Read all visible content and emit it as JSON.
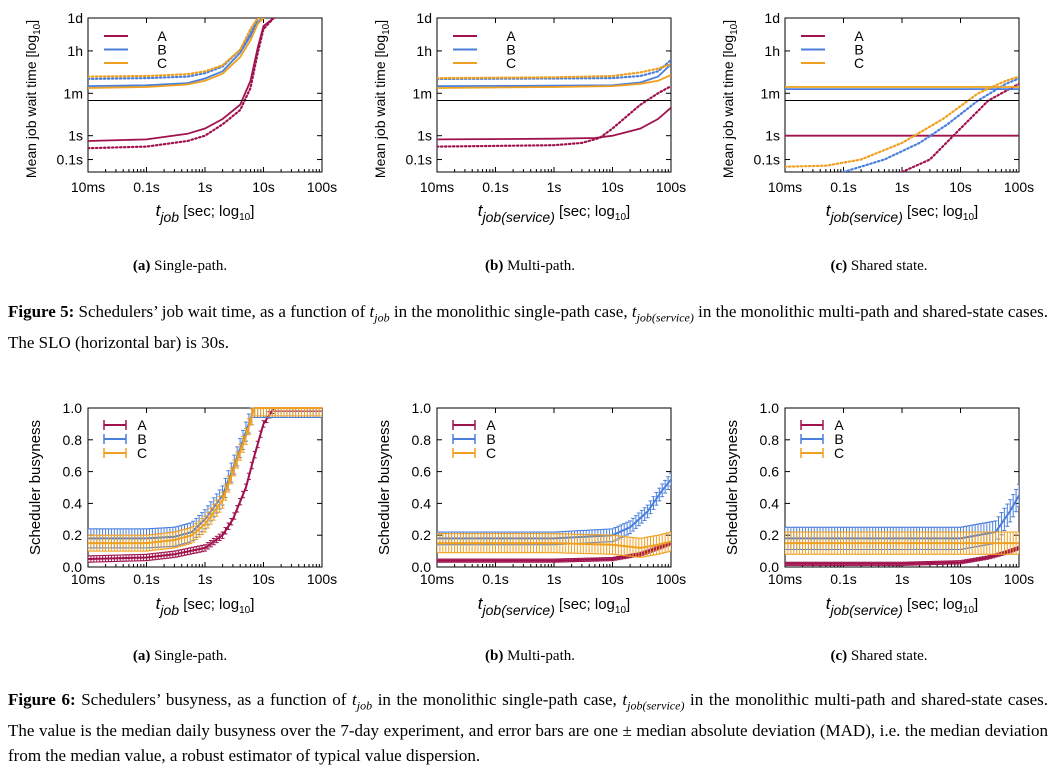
{
  "figure5": {
    "ylabel": "Mean job wait time [log",
    "ylabel_sub": "10",
    "y_ticks": [
      {
        "label": "1d",
        "value": 86400
      },
      {
        "label": "1h",
        "value": 3600
      },
      {
        "label": "1m",
        "value": 60
      },
      {
        "label": "1s",
        "value": 1
      },
      {
        "label": "0.1s",
        "value": 0.1
      }
    ],
    "x_ticks": [
      {
        "label": "10ms",
        "value": 0.01
      },
      {
        "label": "0.1s",
        "value": 0.1
      },
      {
        "label": "1s",
        "value": 1
      },
      {
        "label": "10s",
        "value": 10
      },
      {
        "label": "100s",
        "value": 100
      }
    ],
    "slo_seconds": 30,
    "panels": [
      {
        "sub_label": "(a)",
        "sub_text": "Single-path.",
        "xlabel_t": "t",
        "xlabel_sub": "job",
        "xlabel_rest": " [sec; log",
        "xlabel_rest_sub": "10",
        "chart_data": {
          "type": "line",
          "xscale": "log",
          "yscale": "log",
          "xlim": [
            0.01,
            100
          ],
          "ylim": [
            0.03,
            86400
          ],
          "legend": [
            "A",
            "B",
            "C"
          ],
          "series": [
            {
              "name": "A",
              "color": "#a0124e",
              "style": "solid",
              "x": [
                0.01,
                0.1,
                0.5,
                1,
                2,
                4,
                6,
                8,
                10,
                15
              ],
              "y": [
                0.6,
                0.7,
                1.2,
                2,
                5,
                20,
                200,
                5000,
                40000,
                86400
              ]
            },
            {
              "name": "A",
              "color": "#a0124e",
              "style": "dotted",
              "x": [
                0.01,
                0.1,
                0.5,
                1,
                2,
                4,
                6,
                8,
                10,
                15
              ],
              "y": [
                0.3,
                0.35,
                0.6,
                1,
                3,
                12,
                100,
                3000,
                30000,
                86400
              ]
            },
            {
              "name": "B",
              "color": "#4a7fdc",
              "style": "solid",
              "x": [
                0.01,
                0.1,
                0.5,
                1,
                2,
                4,
                6,
                8,
                10
              ],
              "y": [
                120,
                130,
                160,
                250,
                500,
                3000,
                15000,
                60000,
                86400
              ]
            },
            {
              "name": "B",
              "color": "#4a7fdc",
              "style": "dotted",
              "x": [
                0.01,
                0.1,
                0.5,
                1,
                2,
                4,
                6,
                8,
                10
              ],
              "y": [
                240,
                260,
                300,
                420,
                800,
                4000,
                20000,
                86400,
                86400
              ]
            },
            {
              "name": "C",
              "color": "#f0a020",
              "style": "solid",
              "x": [
                0.01,
                0.1,
                0.5,
                1,
                2,
                4,
                6,
                8,
                10
              ],
              "y": [
                100,
                110,
                140,
                200,
                400,
                2000,
                10000,
                50000,
                86400
              ]
            },
            {
              "name": "C",
              "color": "#f0a020",
              "style": "dotted",
              "x": [
                0.01,
                0.1,
                0.5,
                1,
                2,
                4,
                6,
                8,
                10
              ],
              "y": [
                300,
                320,
                380,
                500,
                900,
                4000,
                30000,
                86400,
                86400
              ]
            }
          ]
        }
      },
      {
        "sub_label": "(b)",
        "sub_text": "Multi-path.",
        "xlabel_t": "t",
        "xlabel_sub": "job(service)",
        "xlabel_rest": " [sec; log",
        "xlabel_rest_sub": "10",
        "chart_data": {
          "type": "line",
          "xscale": "log",
          "yscale": "log",
          "xlim": [
            0.01,
            100
          ],
          "ylim": [
            0.03,
            86400
          ],
          "legend": [
            "A",
            "B",
            "C"
          ],
          "series": [
            {
              "name": "A",
              "color": "#a0124e",
              "style": "solid",
              "x": [
                0.01,
                1,
                5,
                10,
                30,
                60,
                100
              ],
              "y": [
                0.7,
                0.75,
                0.8,
                1,
                2,
                5,
                15
              ]
            },
            {
              "name": "A",
              "color": "#a0124e",
              "style": "dotted",
              "x": [
                0.01,
                1,
                3,
                6,
                10,
                30,
                60,
                100
              ],
              "y": [
                0.35,
                0.4,
                0.5,
                0.8,
                2,
                20,
                60,
                120
              ]
            },
            {
              "name": "B",
              "color": "#4a7fdc",
              "style": "solid",
              "x": [
                0.01,
                1,
                10,
                30,
                60,
                100
              ],
              "y": [
                120,
                125,
                130,
                170,
                300,
                1000
              ]
            },
            {
              "name": "B",
              "color": "#4a7fdc",
              "style": "dotted",
              "x": [
                0.01,
                1,
                10,
                30,
                60,
                100
              ],
              "y": [
                240,
                250,
                260,
                320,
                500,
                1500
              ]
            },
            {
              "name": "C",
              "color": "#f0a020",
              "style": "solid",
              "x": [
                0.01,
                1,
                10,
                30,
                60,
                100
              ],
              "y": [
                100,
                110,
                120,
                150,
                200,
                350
              ]
            },
            {
              "name": "C",
              "color": "#f0a020",
              "style": "dotted",
              "x": [
                0.01,
                1,
                10,
                30,
                60,
                100
              ],
              "y": [
                260,
                280,
                320,
                450,
                650,
                1000
              ]
            }
          ]
        }
      },
      {
        "sub_label": "(c)",
        "sub_text": "Shared state.",
        "xlabel_t": "t",
        "xlabel_sub": "job(service)",
        "xlabel_rest": " [sec; log",
        "xlabel_rest_sub": "10",
        "chart_data": {
          "type": "line",
          "xscale": "log",
          "yscale": "log",
          "xlim": [
            0.01,
            100
          ],
          "ylim": [
            0.03,
            86400
          ],
          "legend": [
            "A",
            "B",
            "C"
          ],
          "series": [
            {
              "name": "A",
              "color": "#a0124e",
              "style": "solid",
              "x": [
                0.01,
                100
              ],
              "y": [
                1,
                1
              ]
            },
            {
              "name": "A",
              "color": "#a0124e",
              "style": "dotted",
              "x": [
                1,
                3,
                10,
                30,
                100
              ],
              "y": [
                0.03,
                0.1,
                2,
                30,
                150
              ]
            },
            {
              "name": "B",
              "color": "#4a7fdc",
              "style": "solid",
              "x": [
                0.01,
                100
              ],
              "y": [
                90,
                90
              ]
            },
            {
              "name": "B",
              "color": "#4a7fdc",
              "style": "dotted",
              "x": [
                0.1,
                0.5,
                2,
                6,
                20,
                60,
                100
              ],
              "y": [
                0.03,
                0.1,
                0.5,
                3,
                30,
                150,
                250
              ]
            },
            {
              "name": "C",
              "color": "#f0a020",
              "style": "solid",
              "x": [
                0.01,
                100
              ],
              "y": [
                110,
                110
              ]
            },
            {
              "name": "C",
              "color": "#f0a020",
              "style": "dotted",
              "x": [
                0.01,
                0.05,
                0.2,
                1,
                5,
                20,
                60,
                100
              ],
              "y": [
                0.05,
                0.055,
                0.1,
                0.5,
                5,
                60,
                200,
                300
              ]
            }
          ]
        }
      }
    ],
    "caption_label": "Figure 5:",
    "caption_part1": " Schedulers’ job wait time, as a function of ",
    "caption_t1": "t",
    "caption_t1_sub": "job",
    "caption_part2": " in the monolithic single-path case, ",
    "caption_t2": "t",
    "caption_t2_sub": "job(service)",
    "caption_part3": " in the monolithic multi-path and shared-state cases. The SLO (horizontal bar) is 30s."
  },
  "figure6": {
    "ylabel": "Scheduler busyness",
    "y_ticks": [
      "0.0",
      "0.2",
      "0.4",
      "0.6",
      "0.8",
      "1.0"
    ],
    "x_ticks": [
      {
        "label": "10ms",
        "value": 0.01
      },
      {
        "label": "0.1s",
        "value": 0.1
      },
      {
        "label": "1s",
        "value": 1
      },
      {
        "label": "10s",
        "value": 10
      },
      {
        "label": "100s",
        "value": 100
      }
    ],
    "panels": [
      {
        "sub_label": "(a)",
        "sub_text": "Single-path.",
        "xlabel_t": "t",
        "xlabel_sub": "job",
        "xlabel_rest": " [sec; log",
        "xlabel_rest_sub": "10",
        "chart_data": {
          "type": "line",
          "xscale": "log",
          "xlim": [
            0.01,
            100
          ],
          "ylim": [
            0,
            1
          ],
          "legend": [
            "A",
            "B",
            "C"
          ],
          "error_bars": "MAD",
          "series": [
            {
              "name": "A",
              "color": "#a0124e",
              "x": [
                0.01,
                0.1,
                0.3,
                1,
                2,
                3,
                5,
                7,
                10,
                15,
                100
              ],
              "y": [
                0.05,
                0.06,
                0.08,
                0.12,
                0.2,
                0.3,
                0.5,
                0.7,
                0.9,
                1.0,
                1.0
              ],
              "err": 0.02
            },
            {
              "name": "B",
              "color": "#4a7fdc",
              "x": [
                0.01,
                0.1,
                0.3,
                0.6,
                1,
                2,
                3,
                5,
                7,
                100
              ],
              "y": [
                0.18,
                0.18,
                0.19,
                0.22,
                0.3,
                0.45,
                0.62,
                0.85,
                1.0,
                1.0
              ],
              "err": 0.06
            },
            {
              "name": "C",
              "color": "#f0a020",
              "x": [
                0.01,
                0.1,
                0.3,
                0.6,
                1,
                2,
                3,
                5,
                7,
                100
              ],
              "y": [
                0.15,
                0.15,
                0.17,
                0.2,
                0.27,
                0.42,
                0.6,
                0.82,
                1.0,
                1.0
              ],
              "err": 0.05
            }
          ]
        }
      },
      {
        "sub_label": "(b)",
        "sub_text": "Multi-path.",
        "xlabel_t": "t",
        "xlabel_sub": "job(service)",
        "xlabel_rest": " [sec; log",
        "xlabel_rest_sub": "10",
        "chart_data": {
          "type": "line",
          "xscale": "log",
          "xlim": [
            0.01,
            100
          ],
          "ylim": [
            0,
            1
          ],
          "legend": [
            "A",
            "B",
            "C"
          ],
          "error_bars": "MAD",
          "series": [
            {
              "name": "A",
              "color": "#a0124e",
              "x": [
                0.01,
                1,
                10,
                30,
                60,
                100
              ],
              "y": [
                0.04,
                0.04,
                0.05,
                0.08,
                0.12,
                0.15
              ],
              "err": 0.01
            },
            {
              "name": "B",
              "color": "#4a7fdc",
              "x": [
                0.01,
                1,
                10,
                20,
                40,
                70,
                100
              ],
              "y": [
                0.18,
                0.18,
                0.2,
                0.25,
                0.35,
                0.48,
                0.55
              ],
              "err": 0.04
            },
            {
              "name": "C",
              "color": "#f0a020",
              "x": [
                0.01,
                1,
                10,
                30,
                60,
                100
              ],
              "y": [
                0.15,
                0.15,
                0.14,
                0.12,
                0.14,
                0.16
              ],
              "err": 0.06
            }
          ]
        }
      },
      {
        "sub_label": "(c)",
        "sub_text": "Shared state.",
        "xlabel_t": "t",
        "xlabel_sub": "job(service)",
        "xlabel_rest": " [sec; log",
        "xlabel_rest_sub": "10",
        "chart_data": {
          "type": "line",
          "xscale": "log",
          "xlim": [
            0.01,
            100
          ],
          "ylim": [
            0,
            1
          ],
          "legend": [
            "A",
            "B",
            "C"
          ],
          "error_bars": "MAD",
          "series": [
            {
              "name": "A",
              "color": "#a0124e",
              "x": [
                0.01,
                1,
                10,
                30,
                60,
                100
              ],
              "y": [
                0.02,
                0.02,
                0.03,
                0.06,
                0.09,
                0.12
              ],
              "err": 0.01
            },
            {
              "name": "B",
              "color": "#4a7fdc",
              "x": [
                0.01,
                10,
                40,
                70,
                100
              ],
              "y": [
                0.18,
                0.18,
                0.22,
                0.35,
                0.45
              ],
              "err": 0.07
            },
            {
              "name": "C",
              "color": "#f0a020",
              "x": [
                0.01,
                10,
                100
              ],
              "y": [
                0.15,
                0.15,
                0.15
              ],
              "err": 0.07
            }
          ]
        }
      }
    ],
    "caption_label": "Figure 6:",
    "caption_part1": " Schedulers’ busyness, as a function of ",
    "caption_t1": "t",
    "caption_t1_sub": "job",
    "caption_part2": " in the monolithic single-path case, ",
    "caption_t2": "t",
    "caption_t2_sub": "job(service)",
    "caption_part3": " in the monolithic multi-path and shared-state cases. The value is the median daily busyness over the 7-day experiment, and error bars are one ± median absolute deviation (MAD), i.e. the median deviation from the median value, a robust estimator of typical value dispersion."
  }
}
